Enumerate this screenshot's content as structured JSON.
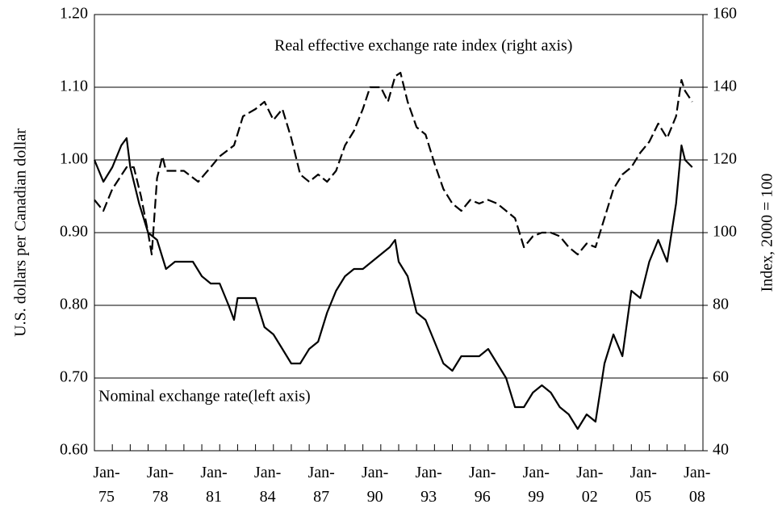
{
  "chart_data": {
    "type": "line",
    "y_label": "U.S. dollars per Canadian dollar",
    "y2_label": "Index, 2000 = 100",
    "annotations": [
      "Real effective exchange rate index (right axis)",
      "Nominal exchange rate(left axis)"
    ],
    "xlim": [
      1975,
      2009
    ],
    "xticks": [
      {
        "value": 1975,
        "label": "Jan-\n75"
      },
      {
        "value": 1978,
        "label": "Jan-\n78"
      },
      {
        "value": 1981,
        "label": "Jan-\n81"
      },
      {
        "value": 1984,
        "label": "Jan-\n84"
      },
      {
        "value": 1987,
        "label": "Jan-\n87"
      },
      {
        "value": 1990,
        "label": "Jan-\n90"
      },
      {
        "value": 1993,
        "label": "Jan-\n93"
      },
      {
        "value": 1996,
        "label": "Jan-\n96"
      },
      {
        "value": 1999,
        "label": "Jan-\n99"
      },
      {
        "value": 2002,
        "label": "Jan-\n02"
      },
      {
        "value": 2005,
        "label": "Jan-\n05"
      },
      {
        "value": 2008,
        "label": "Jan-\n08"
      }
    ],
    "xminorticks": [
      1976,
      1977,
      1979,
      1980,
      1982,
      1983,
      1985,
      1986,
      1988,
      1989,
      1991,
      1992,
      1994,
      1995,
      1997,
      1998,
      2000,
      2001,
      2003,
      2004,
      2006,
      2007,
      2009
    ],
    "ylim": [
      0.6,
      1.2
    ],
    "yticks": [
      {
        "value": 0.6,
        "label": "0.60"
      },
      {
        "value": 0.7,
        "label": "0.70"
      },
      {
        "value": 0.8,
        "label": "0.80"
      },
      {
        "value": 0.9,
        "label": "0.90"
      },
      {
        "value": 1.0,
        "label": "1.00"
      },
      {
        "value": 1.1,
        "label": "1.10"
      },
      {
        "value": 1.2,
        "label": "1.20"
      }
    ],
    "y2lim": [
      40,
      160
    ],
    "y2ticks": [
      40,
      60,
      80,
      100,
      120,
      140,
      160
    ],
    "grid": true,
    "series": [
      {
        "name": "Nominal exchange rate",
        "color": "#000000",
        "dash": "solid",
        "x": [
          1975.0,
          1975.5,
          1976.0,
          1976.5,
          1976.8,
          1977.0,
          1977.5,
          1978.0,
          1978.5,
          1979.0,
          1979.5,
          1980.0,
          1980.5,
          1981.0,
          1981.5,
          1982.0,
          1982.5,
          1982.8,
          1983.0,
          1983.5,
          1984.0,
          1984.5,
          1985.0,
          1985.5,
          1986.0,
          1986.5,
          1987.0,
          1987.5,
          1988.0,
          1988.5,
          1989.0,
          1989.5,
          1990.0,
          1990.5,
          1991.0,
          1991.5,
          1991.8,
          1992.0,
          1992.5,
          1993.0,
          1993.5,
          1994.0,
          1994.5,
          1995.0,
          1995.5,
          1996.0,
          1996.5,
          1997.0,
          1997.5,
          1998.0,
          1998.5,
          1999.0,
          1999.5,
          2000.0,
          2000.5,
          2001.0,
          2001.5,
          2002.0,
          2002.5,
          2003.0,
          2003.5,
          2004.0,
          2004.5,
          2005.0,
          2005.5,
          2006.0,
          2006.5,
          2007.0,
          2007.5,
          2007.8,
          2008.0,
          2008.4
        ],
        "values": [
          1.0,
          0.97,
          0.99,
          1.02,
          1.03,
          0.99,
          0.94,
          0.9,
          0.89,
          0.85,
          0.86,
          0.86,
          0.86,
          0.84,
          0.83,
          0.83,
          0.8,
          0.78,
          0.81,
          0.81,
          0.81,
          0.77,
          0.76,
          0.74,
          0.72,
          0.72,
          0.74,
          0.75,
          0.79,
          0.82,
          0.84,
          0.85,
          0.85,
          0.86,
          0.87,
          0.88,
          0.89,
          0.86,
          0.84,
          0.79,
          0.78,
          0.75,
          0.72,
          0.71,
          0.73,
          0.73,
          0.73,
          0.74,
          0.72,
          0.7,
          0.66,
          0.66,
          0.68,
          0.69,
          0.68,
          0.66,
          0.65,
          0.63,
          0.65,
          0.64,
          0.72,
          0.76,
          0.73,
          0.82,
          0.81,
          0.86,
          0.89,
          0.86,
          0.94,
          1.02,
          1.0,
          0.99
        ]
      },
      {
        "name": "Real effective exchange rate index",
        "color": "#000000",
        "dash": "dashed",
        "axis": "y2",
        "x": [
          1975.0,
          1975.5,
          1976.0,
          1976.8,
          1977.2,
          1977.6,
          1978.0,
          1978.2,
          1978.5,
          1978.8,
          1979.0,
          1980.0,
          1980.8,
          1981.5,
          1982.0,
          1982.8,
          1983.3,
          1984.0,
          1984.5,
          1985.0,
          1985.5,
          1986.0,
          1986.5,
          1987.0,
          1987.5,
          1988.0,
          1988.5,
          1989.0,
          1989.5,
          1990.0,
          1990.4,
          1991.0,
          1991.4,
          1991.8,
          1992.1,
          1992.5,
          1993.0,
          1993.5,
          1994.0,
          1994.5,
          1995.0,
          1995.5,
          1996.0,
          1996.5,
          1997.0,
          1997.5,
          1998.0,
          1998.5,
          1999.0,
          1999.5,
          2000.0,
          2000.5,
          2001.0,
          2001.5,
          2002.0,
          2002.5,
          2003.0,
          2003.5,
          2004.0,
          2004.5,
          2005.0,
          2005.5,
          2006.0,
          2006.5,
          2007.0,
          2007.5,
          2007.8,
          2008.0,
          2008.4
        ],
        "values": [
          109,
          106,
          112,
          118,
          118,
          110,
          100,
          94,
          115,
          121,
          117,
          117,
          114,
          118,
          121,
          124,
          132,
          134,
          136,
          131,
          134,
          126,
          116,
          114,
          116,
          114,
          117,
          124,
          128,
          134,
          140,
          140,
          136,
          143,
          144,
          136,
          129,
          127,
          119,
          112,
          108,
          106,
          109,
          108,
          109,
          108,
          106,
          104,
          96,
          99,
          100,
          100,
          99,
          96,
          94,
          97,
          96,
          104,
          112,
          116,
          118,
          122,
          125,
          130,
          126,
          132,
          142,
          139,
          136
        ]
      }
    ]
  }
}
